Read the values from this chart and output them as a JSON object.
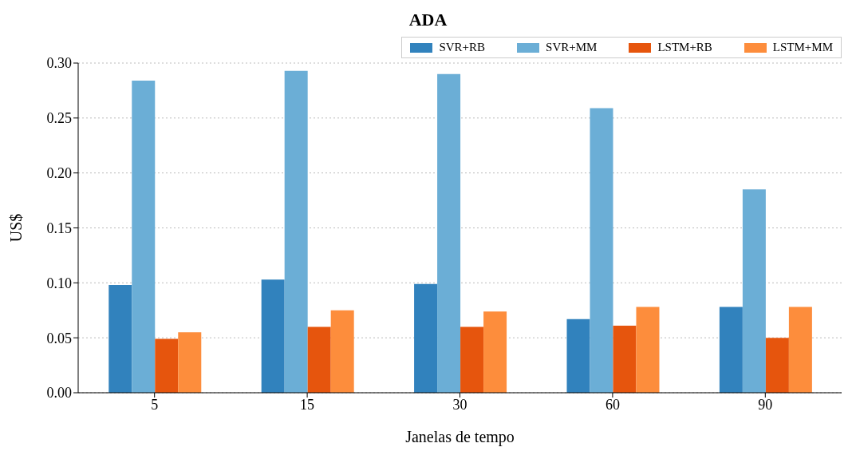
{
  "chart_data": {
    "type": "bar",
    "title": "ADA",
    "xlabel": "Janelas de tempo",
    "ylabel": "US$",
    "categories": [
      "5",
      "15",
      "30",
      "60",
      "90"
    ],
    "series": [
      {
        "name": "SVR+RB",
        "color": "#3182bd",
        "values": [
          0.098,
          0.103,
          0.099,
          0.067,
          0.078
        ]
      },
      {
        "name": "SVR+MM",
        "color": "#6baed6",
        "values": [
          0.284,
          0.293,
          0.29,
          0.259,
          0.185
        ]
      },
      {
        "name": "LSTM+RB",
        "color": "#e6550d",
        "values": [
          0.049,
          0.06,
          0.06,
          0.061,
          0.05
        ]
      },
      {
        "name": "LSTM+MM",
        "color": "#fd8d3c",
        "values": [
          0.055,
          0.075,
          0.074,
          0.078,
          0.078
        ]
      }
    ],
    "ylim": [
      0,
      0.3
    ],
    "yticks": [
      {
        "value": 0,
        "label": "0.00"
      },
      {
        "value": 0.05,
        "label": "0.05"
      },
      {
        "value": 0.1,
        "label": "0.10"
      },
      {
        "value": 0.15,
        "label": "0.15"
      },
      {
        "value": 0.2,
        "label": "0.20"
      },
      {
        "value": 0.25,
        "label": "0.25"
      },
      {
        "value": 0.3,
        "label": "0.30"
      }
    ],
    "grid": "y",
    "legend": "top right"
  }
}
